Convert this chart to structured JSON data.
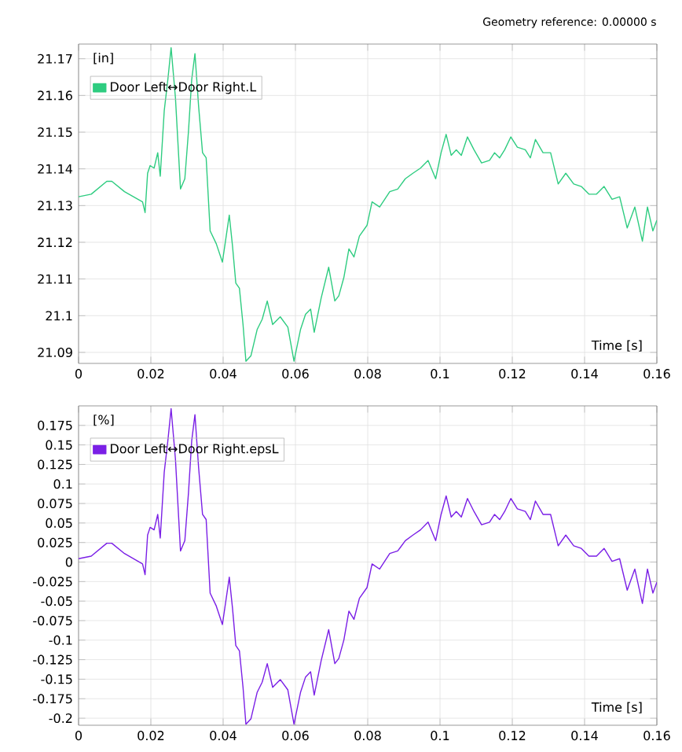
{
  "chart_data": [
    {
      "type": "line",
      "annotations": [
        "Geometry reference: 0.00000 s"
      ],
      "xlabel": "Time [s]",
      "ylabel": "[in]",
      "xlim": [
        0,
        0.16
      ],
      "ylim": [
        21.087,
        21.174
      ],
      "xticks": [
        0,
        0.02,
        0.04,
        0.06,
        0.08,
        0.1,
        0.12,
        0.14,
        0.16
      ],
      "yticks": [
        21.09,
        21.1,
        21.11,
        21.12,
        21.13,
        21.14,
        21.15,
        21.16,
        21.17
      ],
      "grid": true,
      "legend": "top left",
      "x": [
        0,
        0.0035,
        0.0078,
        0.0092,
        0.0127,
        0.0177,
        0.0184,
        0.0191,
        0.0198,
        0.0209,
        0.0219,
        0.0226,
        0.0237,
        0.0247,
        0.0256,
        0.0268,
        0.0282,
        0.0294,
        0.0304,
        0.0313,
        0.0322,
        0.0332,
        0.0343,
        0.0353,
        0.0364,
        0.0381,
        0.0398,
        0.0417,
        0.0426,
        0.0435,
        0.0445,
        0.0455,
        0.0463,
        0.0477,
        0.0494,
        0.0508,
        0.0522,
        0.0537,
        0.0558,
        0.0579,
        0.0596,
        0.0614,
        0.0628,
        0.0642,
        0.0652,
        0.0671,
        0.0692,
        0.0709,
        0.072,
        0.0734,
        0.0748,
        0.0762,
        0.0777,
        0.0798,
        0.0812,
        0.0833,
        0.0861,
        0.0883,
        0.0904,
        0.0925,
        0.0946,
        0.0967,
        0.0988,
        0.1003,
        0.1017,
        0.1031,
        0.1045,
        0.1059,
        0.1076,
        0.1094,
        0.1115,
        0.1137,
        0.1151,
        0.1165,
        0.1179,
        0.1196,
        0.1214,
        0.1236,
        0.125,
        0.1264,
        0.1285,
        0.1306,
        0.1327,
        0.1348,
        0.137,
        0.1391,
        0.1412,
        0.1433,
        0.1454,
        0.1476,
        0.1497,
        0.1518,
        0.1539,
        0.156,
        0.1574,
        0.1589,
        0.16
      ],
      "series": [
        {
          "name": "Door Left↔Door Right.L",
          "color": "#2ecc80",
          "values": [
            21.1324,
            21.1331,
            21.1366,
            21.1366,
            21.1338,
            21.131,
            21.1281,
            21.1388,
            21.1409,
            21.1402,
            21.1444,
            21.138,
            21.1558,
            21.1643,
            21.173,
            21.1594,
            21.1345,
            21.1373,
            21.1501,
            21.1643,
            21.1714,
            21.1572,
            21.1444,
            21.143,
            21.1231,
            21.1196,
            21.1146,
            21.1274,
            21.1189,
            21.1089,
            21.1075,
            21.0976,
            21.0876,
            21.0891,
            21.0962,
            21.099,
            21.104,
            21.0976,
            21.0997,
            21.0969,
            21.0876,
            21.0962,
            21.1004,
            21.1018,
            21.0955,
            21.1047,
            21.1132,
            21.104,
            21.1054,
            21.1104,
            21.1182,
            21.116,
            21.1217,
            21.1246,
            21.131,
            21.1296,
            21.1338,
            21.1345,
            21.1373,
            21.1388,
            21.1402,
            21.1423,
            21.1373,
            21.1444,
            21.1494,
            21.1437,
            21.1452,
            21.1437,
            21.1487,
            21.1452,
            21.1416,
            21.1423,
            21.1444,
            21.143,
            21.1452,
            21.1487,
            21.1459,
            21.1452,
            21.143,
            21.148,
            21.1444,
            21.1444,
            21.1359,
            21.1388,
            21.1359,
            21.1352,
            21.1331,
            21.1331,
            21.1352,
            21.1317,
            21.1324,
            21.1239,
            21.1296,
            21.1203,
            21.1296,
            21.1231,
            21.126
          ]
        }
      ]
    },
    {
      "type": "line",
      "xlabel": "Time [s]",
      "ylabel": "[%]",
      "xlim": [
        0,
        0.16
      ],
      "ylim": [
        -0.209,
        0.2
      ],
      "xticks": [
        0,
        0.02,
        0.04,
        0.06,
        0.08,
        0.1,
        0.12,
        0.14,
        0.16
      ],
      "yticks": [
        -0.2,
        -0.175,
        -0.15,
        -0.125,
        -0.1,
        -0.075,
        -0.05,
        -0.025,
        0,
        0.025,
        0.05,
        0.075,
        0.1,
        0.125,
        0.15,
        0.175
      ],
      "grid": true,
      "legend": "top left",
      "x": [
        0,
        0.0035,
        0.0078,
        0.0092,
        0.0127,
        0.0177,
        0.0184,
        0.0191,
        0.0198,
        0.0209,
        0.0219,
        0.0226,
        0.0237,
        0.0247,
        0.0256,
        0.0268,
        0.0282,
        0.0294,
        0.0304,
        0.0313,
        0.0322,
        0.0332,
        0.0343,
        0.0353,
        0.0364,
        0.0381,
        0.0398,
        0.0417,
        0.0426,
        0.0435,
        0.0445,
        0.0455,
        0.0463,
        0.0477,
        0.0494,
        0.0508,
        0.0522,
        0.0537,
        0.0558,
        0.0579,
        0.0596,
        0.0614,
        0.0628,
        0.0642,
        0.0652,
        0.0671,
        0.0692,
        0.0709,
        0.072,
        0.0734,
        0.0748,
        0.0762,
        0.0777,
        0.0798,
        0.0812,
        0.0833,
        0.0861,
        0.0883,
        0.0904,
        0.0925,
        0.0946,
        0.0967,
        0.0988,
        0.1003,
        0.1017,
        0.1031,
        0.1045,
        0.1059,
        0.1076,
        0.1094,
        0.1115,
        0.1137,
        0.1151,
        0.1165,
        0.1179,
        0.1196,
        0.1214,
        0.1236,
        0.125,
        0.1264,
        0.1285,
        0.1306,
        0.1327,
        0.1348,
        0.137,
        0.1391,
        0.1412,
        0.1433,
        0.1454,
        0.1476,
        0.1497,
        0.1518,
        0.1539,
        0.156,
        0.1574,
        0.1589,
        0.16
      ],
      "series": [
        {
          "name": "Door Left↔Door Right.epsL",
          "color": "#7a1fe6",
          "values": [
            0.0043,
            0.0076,
            0.0241,
            0.0241,
            0.0109,
            -0.0024,
            -0.0161,
            0.0345,
            0.0445,
            0.0412,
            0.061,
            0.0308,
            0.115,
            0.1552,
            0.1964,
            0.132,
            0.0142,
            0.0274,
            0.088,
            0.1552,
            0.1888,
            0.1216,
            0.061,
            0.0544,
            -0.0397,
            -0.0563,
            -0.08,
            -0.0194,
            -0.0596,
            -0.1069,
            -0.1136,
            -0.1604,
            -0.2077,
            -0.2006,
            -0.167,
            -0.1538,
            -0.1301,
            -0.1604,
            -0.1505,
            -0.1637,
            -0.2077,
            -0.167,
            -0.1472,
            -0.1405,
            -0.1704,
            -0.1268,
            -0.0866,
            -0.1301,
            -0.1235,
            -0.0998,
            -0.0629,
            -0.0733,
            -0.0464,
            -0.0327,
            -0.0024,
            -0.009,
            0.0109,
            0.0142,
            0.0274,
            0.0345,
            0.0412,
            0.0511,
            0.0274,
            0.061,
            0.0847,
            0.0577,
            0.0648,
            0.0577,
            0.0814,
            0.0648,
            0.0478,
            0.0511,
            0.061,
            0.0544,
            0.0648,
            0.0814,
            0.0681,
            0.0648,
            0.0544,
            0.0781,
            0.061,
            0.061,
            0.0208,
            0.0345,
            0.0208,
            0.0175,
            0.0076,
            0.0076,
            0.0175,
            0.0009,
            0.0043,
            -0.036,
            -0.009,
            -0.053,
            -0.009,
            -0.0397,
            -0.026
          ]
        }
      ]
    }
  ]
}
